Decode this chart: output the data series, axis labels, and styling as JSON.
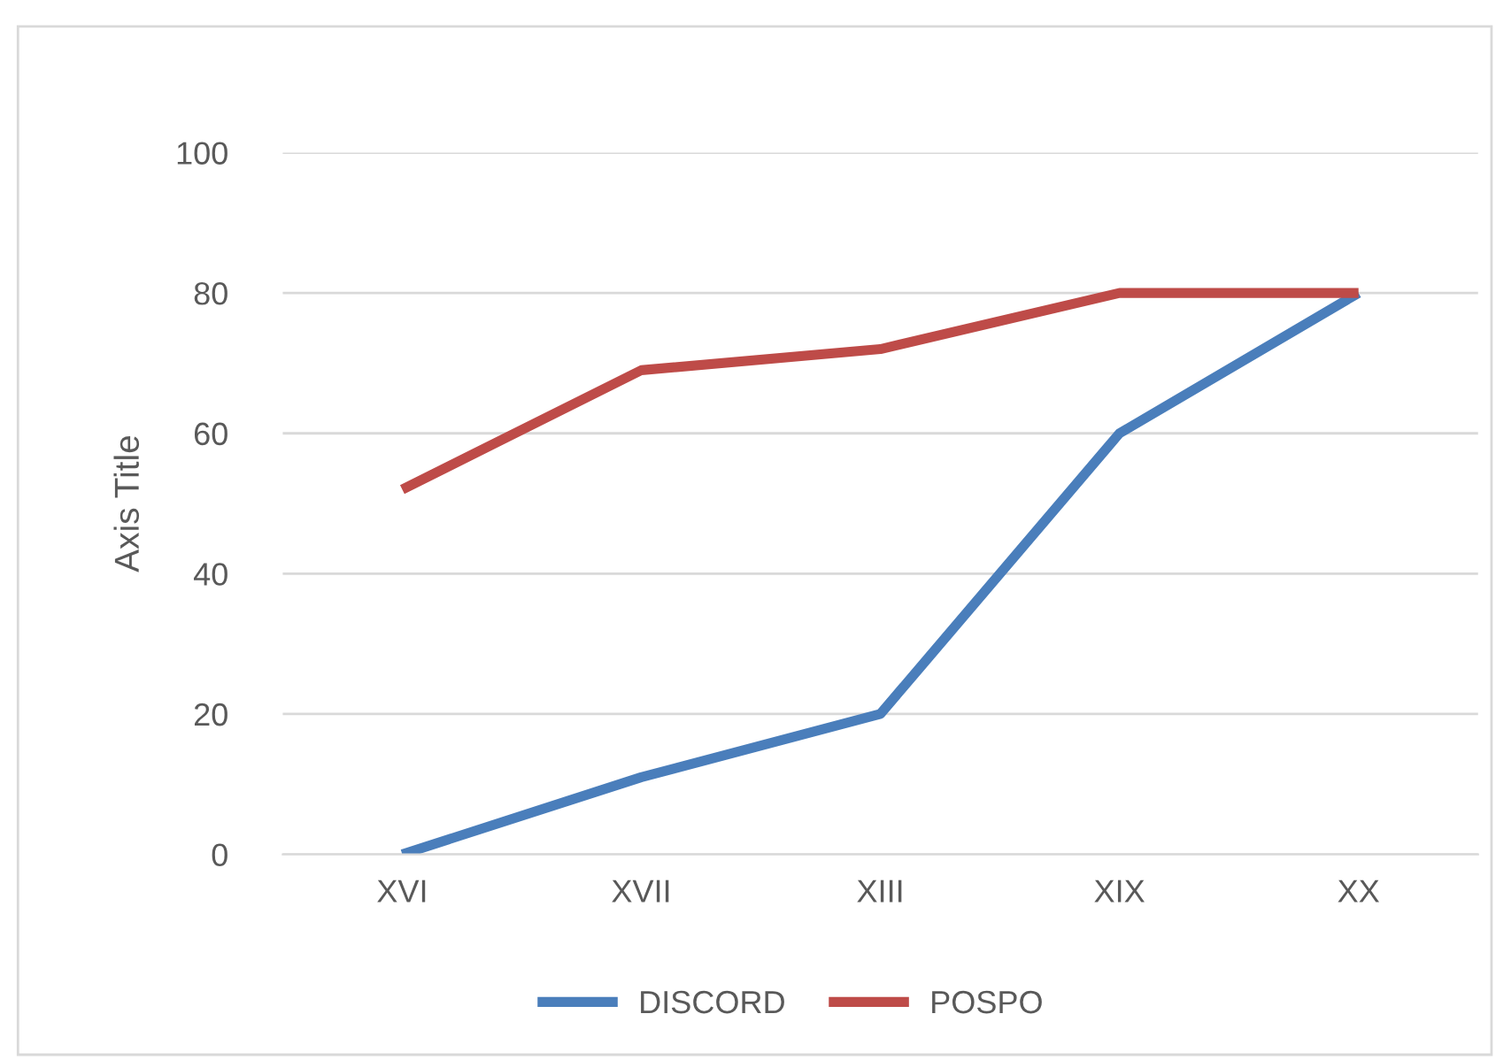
{
  "chart_data": {
    "type": "line",
    "ylabel": "Axis Title",
    "categories": [
      "XVI",
      "XVII",
      "XIII",
      "XIX",
      "XX"
    ],
    "series": [
      {
        "name": "DISCORD",
        "color": "#4a7ebb",
        "values": [
          0,
          11,
          20,
          60,
          80
        ]
      },
      {
        "name": "POSPO",
        "color": "#be4b48",
        "values": [
          52,
          69,
          72,
          80,
          80
        ]
      }
    ],
    "ylim": [
      0,
      100
    ],
    "yticks": [
      0,
      20,
      40,
      60,
      80,
      100
    ],
    "grid": "y",
    "legend": "bottom",
    "marker": "none",
    "line_style": "solid"
  }
}
